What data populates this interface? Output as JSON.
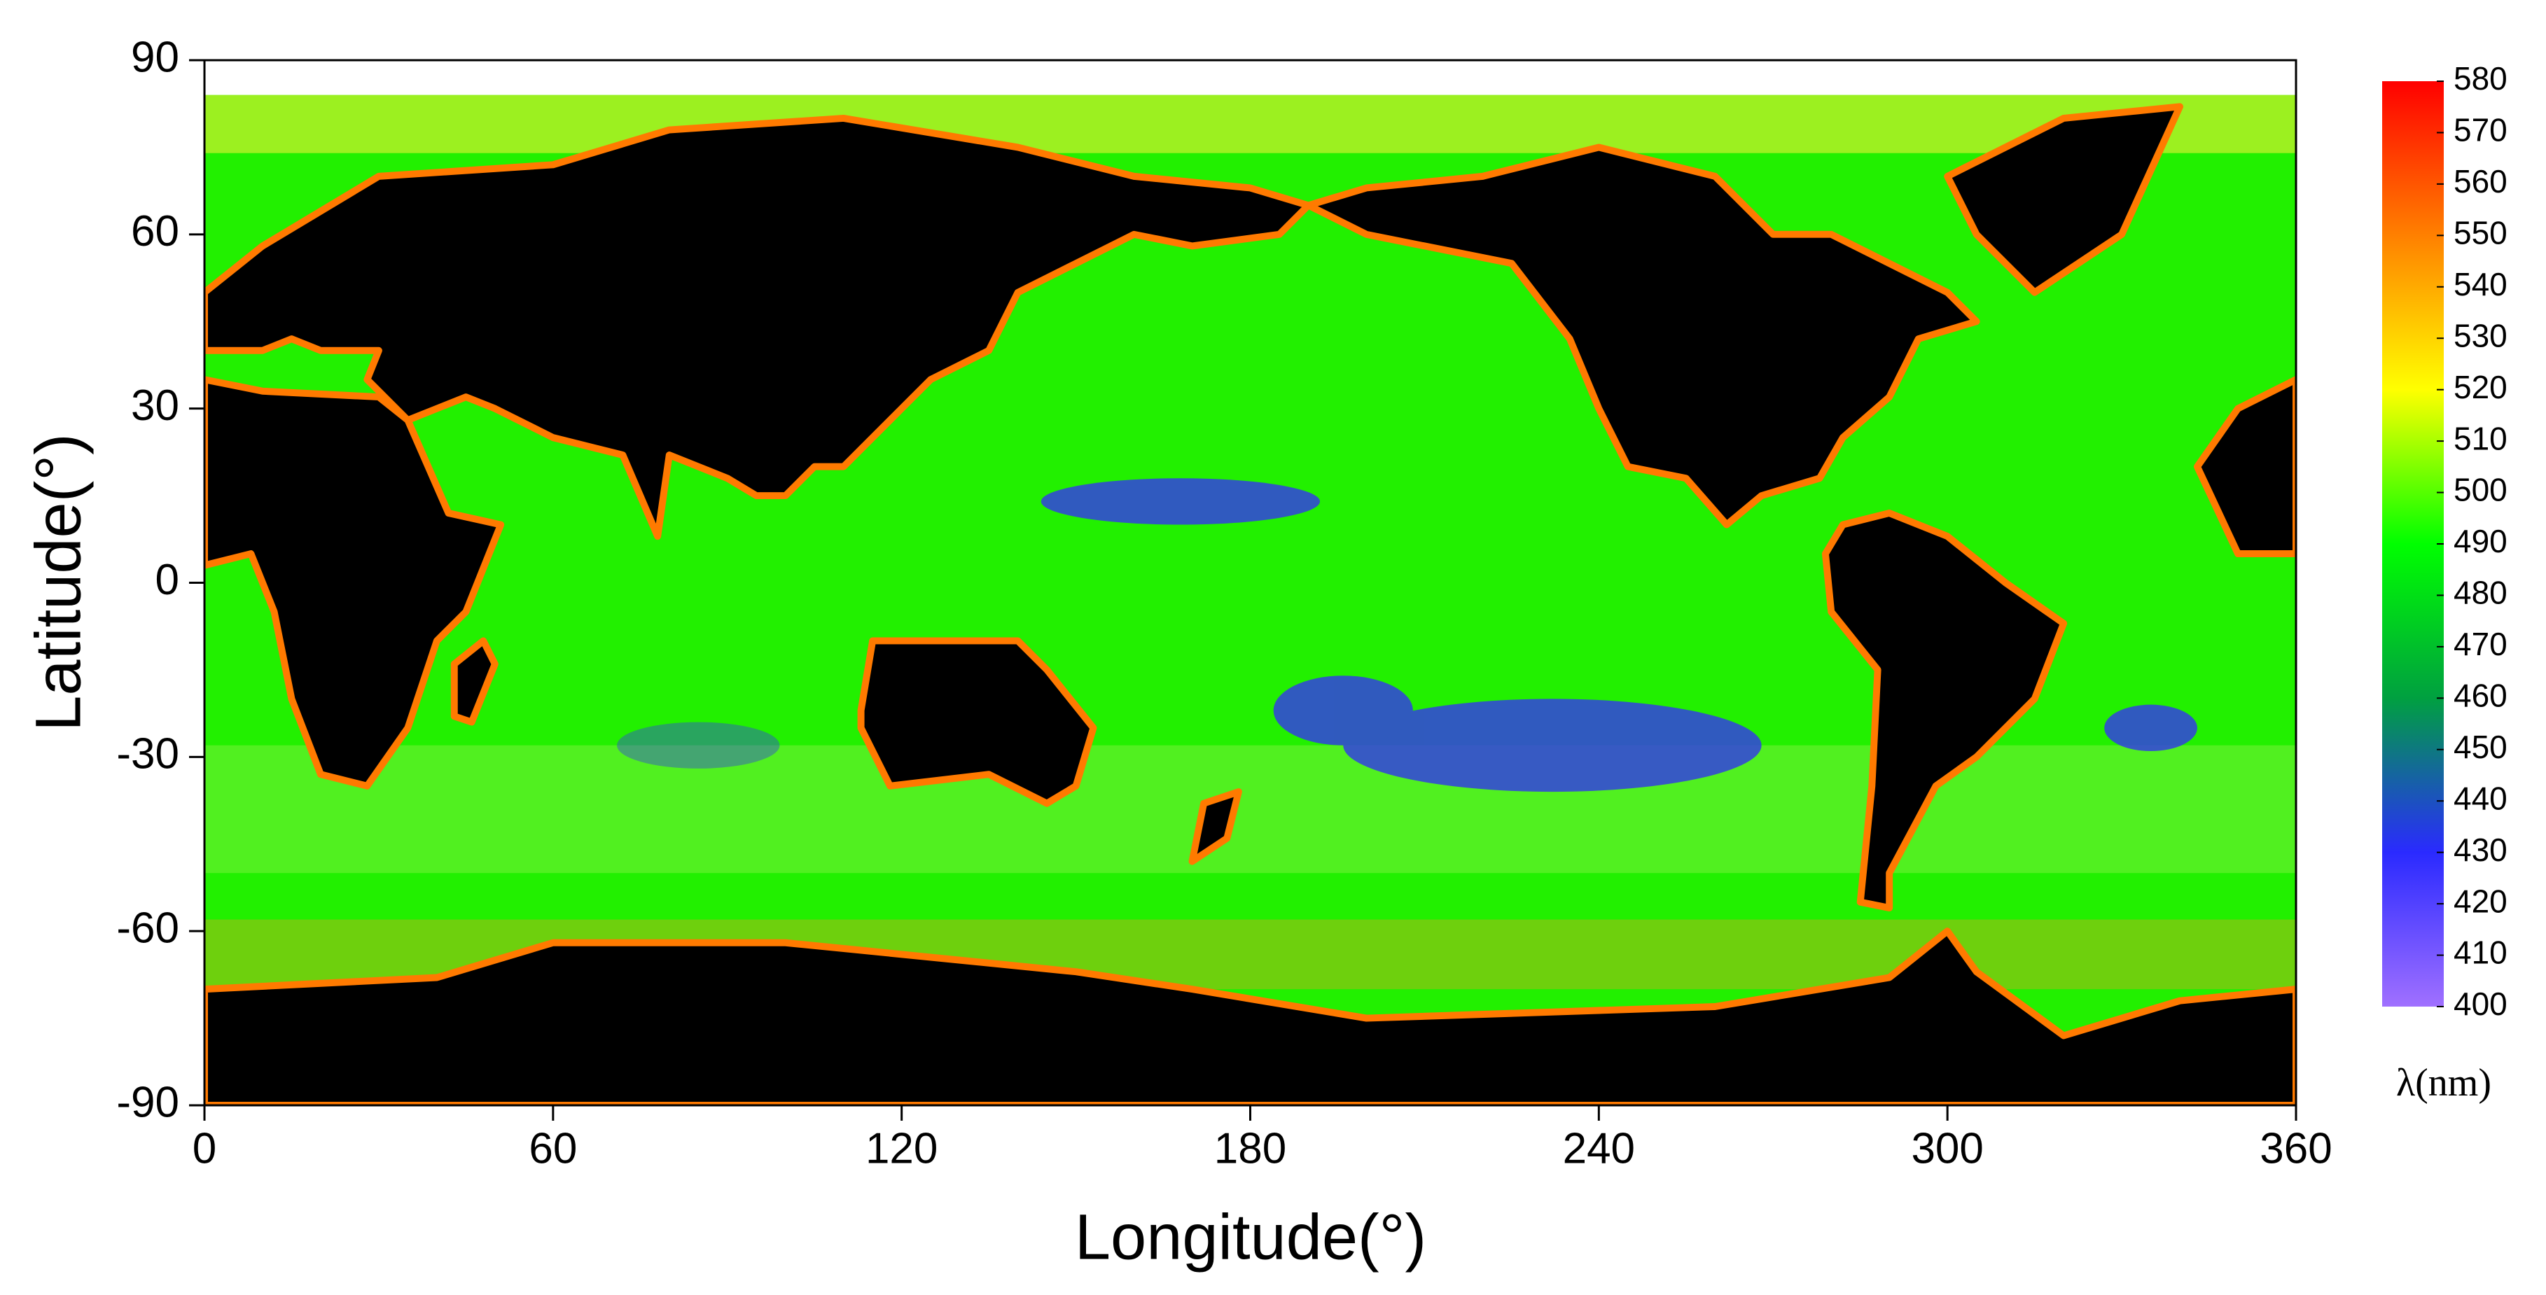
{
  "chart_data": {
    "type": "map",
    "xlabel": "Longitude(°)",
    "ylabel": "Latitude(°)",
    "xlim": [
      0,
      360
    ],
    "xticks": [
      0,
      60,
      120,
      180,
      240,
      300,
      360
    ],
    "ylim": [
      -90,
      90
    ],
    "yticks": [
      -90,
      -60,
      -30,
      0,
      30,
      60,
      90
    ],
    "colorbar": {
      "label": "λ(nm)",
      "lim": [
        400,
        580
      ],
      "ticks": [
        400,
        410,
        420,
        430,
        440,
        450,
        460,
        470,
        480,
        490,
        500,
        510,
        520,
        530,
        540,
        550,
        560,
        570,
        580
      ],
      "colors": [
        "#a070ff",
        "#2a2aff",
        "#00a040",
        "#00ff00",
        "#ffff00",
        "#ff8000",
        "#ff0000"
      ]
    }
  }
}
